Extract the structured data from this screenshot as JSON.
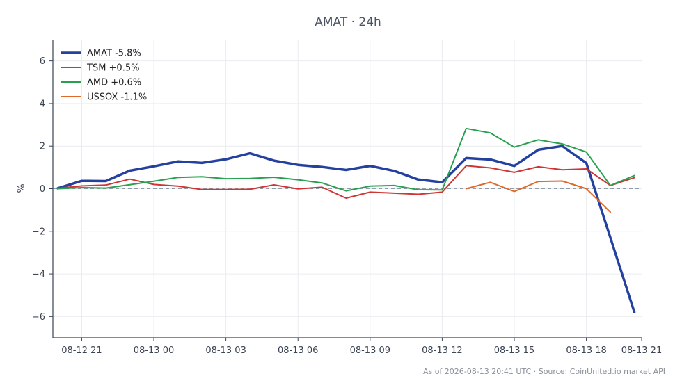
{
  "chart_data": {
    "type": "line",
    "title": "AMAT · 24h",
    "ylabel": "%",
    "xlabel": "",
    "footer": "As of 2026-08-13 20:41 UTC · Source: CoinUnited.io market API",
    "ylim": [
      -7,
      7
    ],
    "yticks": [
      6,
      4,
      2,
      0,
      -2,
      -4,
      -6
    ],
    "ytick_labels": [
      "6",
      "4",
      "2",
      "0",
      "−2",
      "−4",
      "−6"
    ],
    "xlim": [
      19.8,
      44.3
    ],
    "xticks": [
      21,
      24,
      27,
      30,
      33,
      36,
      39,
      42,
      45
    ],
    "xtick_labels": [
      "08-12 21",
      "08-13 00",
      "08-13 03",
      "08-13 06",
      "08-13 09",
      "08-13 12",
      "08-13 15",
      "08-13 18",
      "08-13 21"
    ],
    "grid": true,
    "zero_line": true,
    "legend": "top-left",
    "series": [
      {
        "name": "AMAT -5.8%",
        "color": "#2541a0",
        "width": 3.5,
        "x": [
          20,
          21,
          22,
          23,
          24,
          25,
          26,
          27,
          28,
          29,
          30,
          31,
          32,
          33,
          34,
          35,
          36,
          37,
          38,
          39,
          40,
          41,
          42,
          43,
          44
        ],
        "values": [
          0.02,
          0.37,
          0.36,
          0.85,
          1.05,
          1.28,
          1.21,
          1.38,
          1.66,
          1.32,
          1.12,
          1.02,
          0.88,
          1.07,
          0.84,
          0.43,
          0.3,
          1.44,
          1.37,
          1.07,
          1.83,
          2.0,
          1.2,
          -2.3,
          -5.8
        ]
      },
      {
        "name": "TSM +0.5%",
        "color": "#d03535",
        "width": 2,
        "x": [
          20,
          21,
          22,
          23,
          24,
          25,
          26,
          27,
          28,
          29,
          30,
          31,
          32,
          33,
          34,
          35,
          36,
          37,
          38,
          39,
          40,
          41,
          42,
          43,
          44
        ],
        "values": [
          0.02,
          0.13,
          0.17,
          0.45,
          0.2,
          0.12,
          -0.04,
          -0.04,
          -0.03,
          0.18,
          -0.01,
          0.07,
          -0.44,
          -0.16,
          -0.21,
          -0.26,
          -0.16,
          1.08,
          0.98,
          0.77,
          1.03,
          0.89,
          0.93,
          0.15,
          0.52
        ]
      },
      {
        "name": "AMD +0.6%",
        "color": "#28a050",
        "width": 2,
        "x": [
          20,
          21,
          22,
          23,
          24,
          25,
          26,
          27,
          28,
          29,
          30,
          31,
          32,
          33,
          34,
          35,
          36,
          37,
          38,
          39,
          40,
          41,
          42,
          43,
          44
        ],
        "values": [
          0.0,
          0.05,
          0.03,
          0.19,
          0.35,
          0.53,
          0.56,
          0.47,
          0.48,
          0.54,
          0.42,
          0.27,
          -0.1,
          0.12,
          0.15,
          -0.05,
          -0.06,
          2.83,
          2.62,
          1.95,
          2.29,
          2.1,
          1.72,
          0.15,
          0.62
        ]
      },
      {
        "name": "USSOX -1.1%",
        "color": "#e0692a",
        "width": 2,
        "x": [
          37,
          38,
          39,
          40,
          41,
          42,
          43
        ],
        "values": [
          0.0,
          0.3,
          -0.13,
          0.34,
          0.36,
          0.0,
          -1.1
        ]
      }
    ]
  }
}
